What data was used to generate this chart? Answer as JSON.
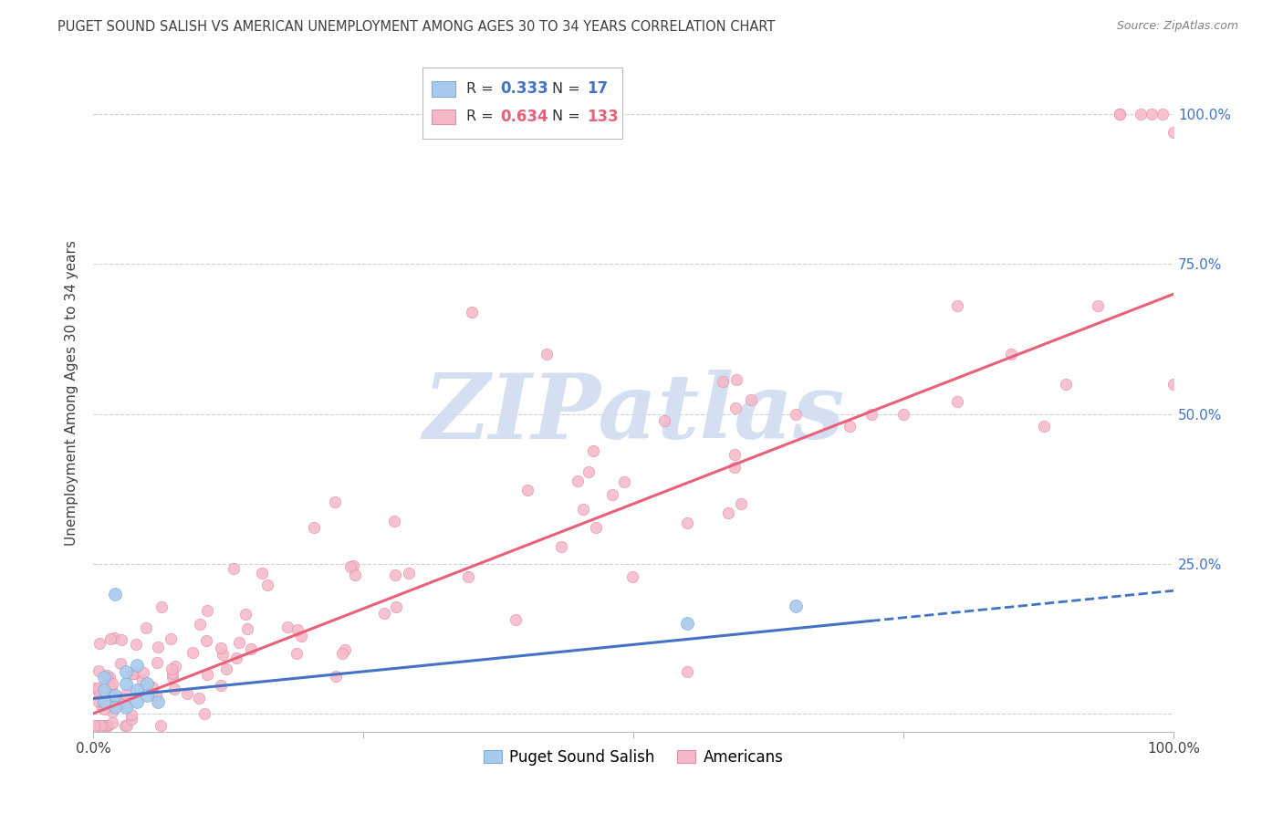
{
  "title": "PUGET SOUND SALISH VS AMERICAN UNEMPLOYMENT AMONG AGES 30 TO 34 YEARS CORRELATION CHART",
  "source": "Source: ZipAtlas.com",
  "ylabel": "Unemployment Among Ages 30 to 34 years",
  "legend_labels": [
    "Puget Sound Salish",
    "Americans"
  ],
  "blue_R": 0.333,
  "blue_N": 17,
  "pink_R": 0.634,
  "pink_N": 133,
  "blue_color": "#A8CAEE",
  "pink_color": "#F5B8C8",
  "blue_line_color": "#4472C4",
  "pink_line_color": "#E8607A",
  "blue_edge_color": "#7AAAD8",
  "pink_edge_color": "#E090A8",
  "watermark_color": "#D0DCF0",
  "background_color": "#FFFFFF",
  "grid_color": "#CCCCCC",
  "title_color": "#404040",
  "source_color": "#808080",
  "right_tick_color": "#4472C4",
  "xlim": [
    0,
    1.0
  ],
  "ylim": [
    -0.03,
    1.1
  ],
  "xtick_labels": [
    "0.0%",
    "",
    "",
    "",
    "100.0%"
  ],
  "ytick_labels_right": [
    "",
    "25.0%",
    "50.0%",
    "75.0%",
    "100.0%"
  ]
}
